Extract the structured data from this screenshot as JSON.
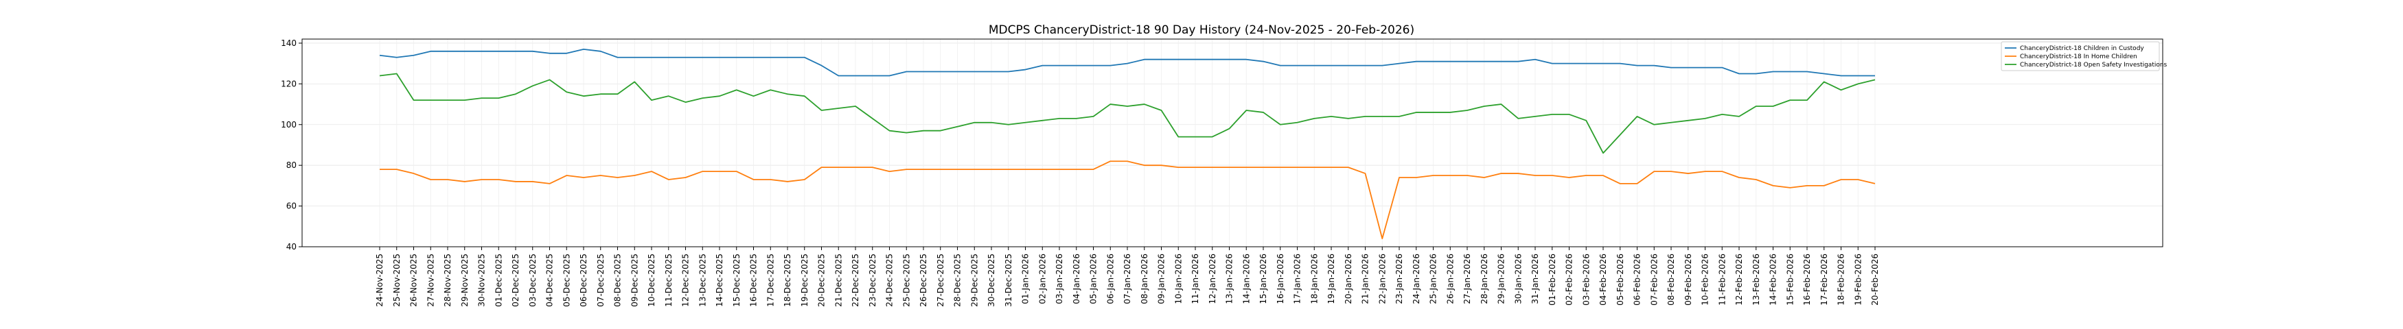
{
  "chart_data": {
    "type": "line",
    "title": "MDCPS ChanceryDistrict-18 90 Day History (24-Nov-2025 - 20-Feb-2026)",
    "xlabel": "",
    "ylabel": "",
    "ylim": [
      40,
      142
    ],
    "yticks": [
      40,
      60,
      80,
      100,
      120,
      140
    ],
    "grid": true,
    "legend_position": "top-right",
    "x": [
      "24-Nov-2025",
      "25-Nov-2025",
      "26-Nov-2025",
      "27-Nov-2025",
      "28-Nov-2025",
      "29-Nov-2025",
      "30-Nov-2025",
      "01-Dec-2025",
      "02-Dec-2025",
      "03-Dec-2025",
      "04-Dec-2025",
      "05-Dec-2025",
      "06-Dec-2025",
      "07-Dec-2025",
      "08-Dec-2025",
      "09-Dec-2025",
      "10-Dec-2025",
      "11-Dec-2025",
      "12-Dec-2025",
      "13-Dec-2025",
      "14-Dec-2025",
      "15-Dec-2025",
      "16-Dec-2025",
      "17-Dec-2025",
      "18-Dec-2025",
      "19-Dec-2025",
      "20-Dec-2025",
      "21-Dec-2025",
      "22-Dec-2025",
      "23-Dec-2025",
      "24-Dec-2025",
      "25-Dec-2025",
      "26-Dec-2025",
      "27-Dec-2025",
      "28-Dec-2025",
      "29-Dec-2025",
      "30-Dec-2025",
      "31-Dec-2025",
      "01-Jan-2026",
      "02-Jan-2026",
      "03-Jan-2026",
      "04-Jan-2026",
      "05-Jan-2026",
      "06-Jan-2026",
      "07-Jan-2026",
      "08-Jan-2026",
      "09-Jan-2026",
      "10-Jan-2026",
      "11-Jan-2026",
      "12-Jan-2026",
      "13-Jan-2026",
      "14-Jan-2026",
      "15-Jan-2026",
      "16-Jan-2026",
      "17-Jan-2026",
      "18-Jan-2026",
      "19-Jan-2026",
      "20-Jan-2026",
      "21-Jan-2026",
      "22-Jan-2026",
      "23-Jan-2026",
      "24-Jan-2026",
      "25-Jan-2026",
      "26-Jan-2026",
      "27-Jan-2026",
      "28-Jan-2026",
      "29-Jan-2026",
      "30-Jan-2026",
      "31-Jan-2026",
      "01-Feb-2026",
      "02-Feb-2026",
      "03-Feb-2026",
      "04-Feb-2026",
      "05-Feb-2026",
      "06-Feb-2026",
      "07-Feb-2026",
      "08-Feb-2026",
      "09-Feb-2026",
      "10-Feb-2026",
      "11-Feb-2026",
      "12-Feb-2026",
      "13-Feb-2026",
      "14-Feb-2026",
      "15-Feb-2026",
      "16-Feb-2026",
      "17-Feb-2026",
      "18-Feb-2026",
      "19-Feb-2026",
      "20-Feb-2026"
    ],
    "series": [
      {
        "name": "ChanceryDistrict-18 Children in Custody",
        "color": "#1f77b4",
        "values": [
          134,
          133,
          134,
          136,
          136,
          136,
          136,
          136,
          136,
          136,
          135,
          135,
          137,
          136,
          133,
          133,
          133,
          133,
          133,
          133,
          133,
          133,
          133,
          133,
          133,
          133,
          129,
          124,
          124,
          124,
          124,
          126,
          126,
          126,
          126,
          126,
          126,
          126,
          127,
          129,
          129,
          129,
          129,
          129,
          130,
          132,
          132,
          132,
          132,
          132,
          132,
          132,
          131,
          129,
          129,
          129,
          129,
          129,
          129,
          129,
          130,
          131,
          131,
          131,
          131,
          131,
          131,
          131,
          132,
          130,
          130,
          130,
          130,
          130,
          129,
          129,
          128,
          128,
          128,
          128,
          125,
          125,
          126,
          126,
          126,
          125,
          124,
          124,
          124
        ]
      },
      {
        "name": "ChanceryDistrict-18 In Home Children",
        "color": "#ff7f0e",
        "values": [
          78,
          78,
          76,
          73,
          73,
          72,
          73,
          73,
          72,
          72,
          71,
          75,
          74,
          75,
          74,
          75,
          77,
          73,
          74,
          77,
          77,
          77,
          73,
          73,
          72,
          73,
          79,
          79,
          79,
          79,
          77,
          78,
          78,
          78,
          78,
          78,
          78,
          78,
          78,
          78,
          78,
          78,
          78,
          82,
          82,
          80,
          80,
          79,
          79,
          79,
          79,
          79,
          79,
          79,
          79,
          79,
          79,
          79,
          76,
          44,
          74,
          74,
          75,
          75,
          75,
          74,
          76,
          76,
          75,
          75,
          74,
          75,
          75,
          71,
          71,
          77,
          77,
          76,
          77,
          77,
          74,
          73,
          70,
          69,
          70,
          70,
          73,
          73,
          71
        ]
      },
      {
        "name": "ChanceryDistrict-18 Open Safety Investigations",
        "color": "#2ca02c",
        "values": [
          124,
          125,
          112,
          112,
          112,
          112,
          113,
          113,
          115,
          119,
          122,
          116,
          114,
          115,
          115,
          121,
          112,
          114,
          111,
          113,
          114,
          117,
          114,
          117,
          115,
          114,
          107,
          108,
          109,
          103,
          97,
          96,
          97,
          97,
          99,
          101,
          101,
          100,
          101,
          102,
          103,
          103,
          104,
          110,
          109,
          110,
          107,
          94,
          94,
          94,
          98,
          107,
          106,
          100,
          101,
          103,
          104,
          103,
          104,
          104,
          104,
          106,
          106,
          106,
          107,
          109,
          110,
          103,
          104,
          105,
          105,
          102,
          86,
          95,
          104,
          100,
          101,
          102,
          103,
          105,
          104,
          109,
          109,
          112,
          112,
          121,
          117,
          120,
          122
        ]
      }
    ]
  }
}
